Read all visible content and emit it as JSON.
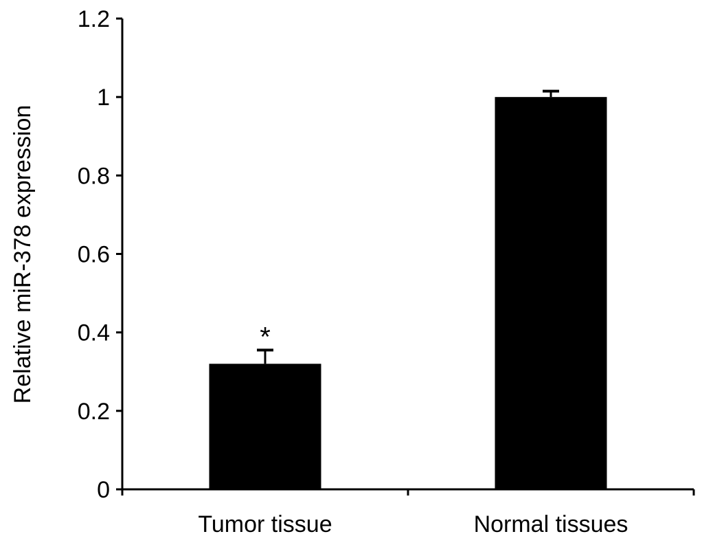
{
  "chart_data": {
    "type": "bar",
    "title": "",
    "xlabel": "",
    "ylabel": "Relative miR-378 expression",
    "categories": [
      "Tumor tissue",
      "Normal tissues"
    ],
    "values": [
      0.32,
      1.0
    ],
    "error_bars": [
      0.035,
      0.015
    ],
    "annotations": [
      {
        "category": "Tumor tissue",
        "text": "*"
      }
    ],
    "ylim": [
      0,
      1.2
    ],
    "yticks": [
      0,
      0.2,
      0.4,
      0.6,
      0.8,
      1,
      1.2
    ],
    "ytick_labels": [
      "0",
      "0.2",
      "0.4",
      "0.6",
      "0.8",
      "1",
      "1.2"
    ],
    "grid": false,
    "legend": "none",
    "bar_color": "#000000"
  }
}
